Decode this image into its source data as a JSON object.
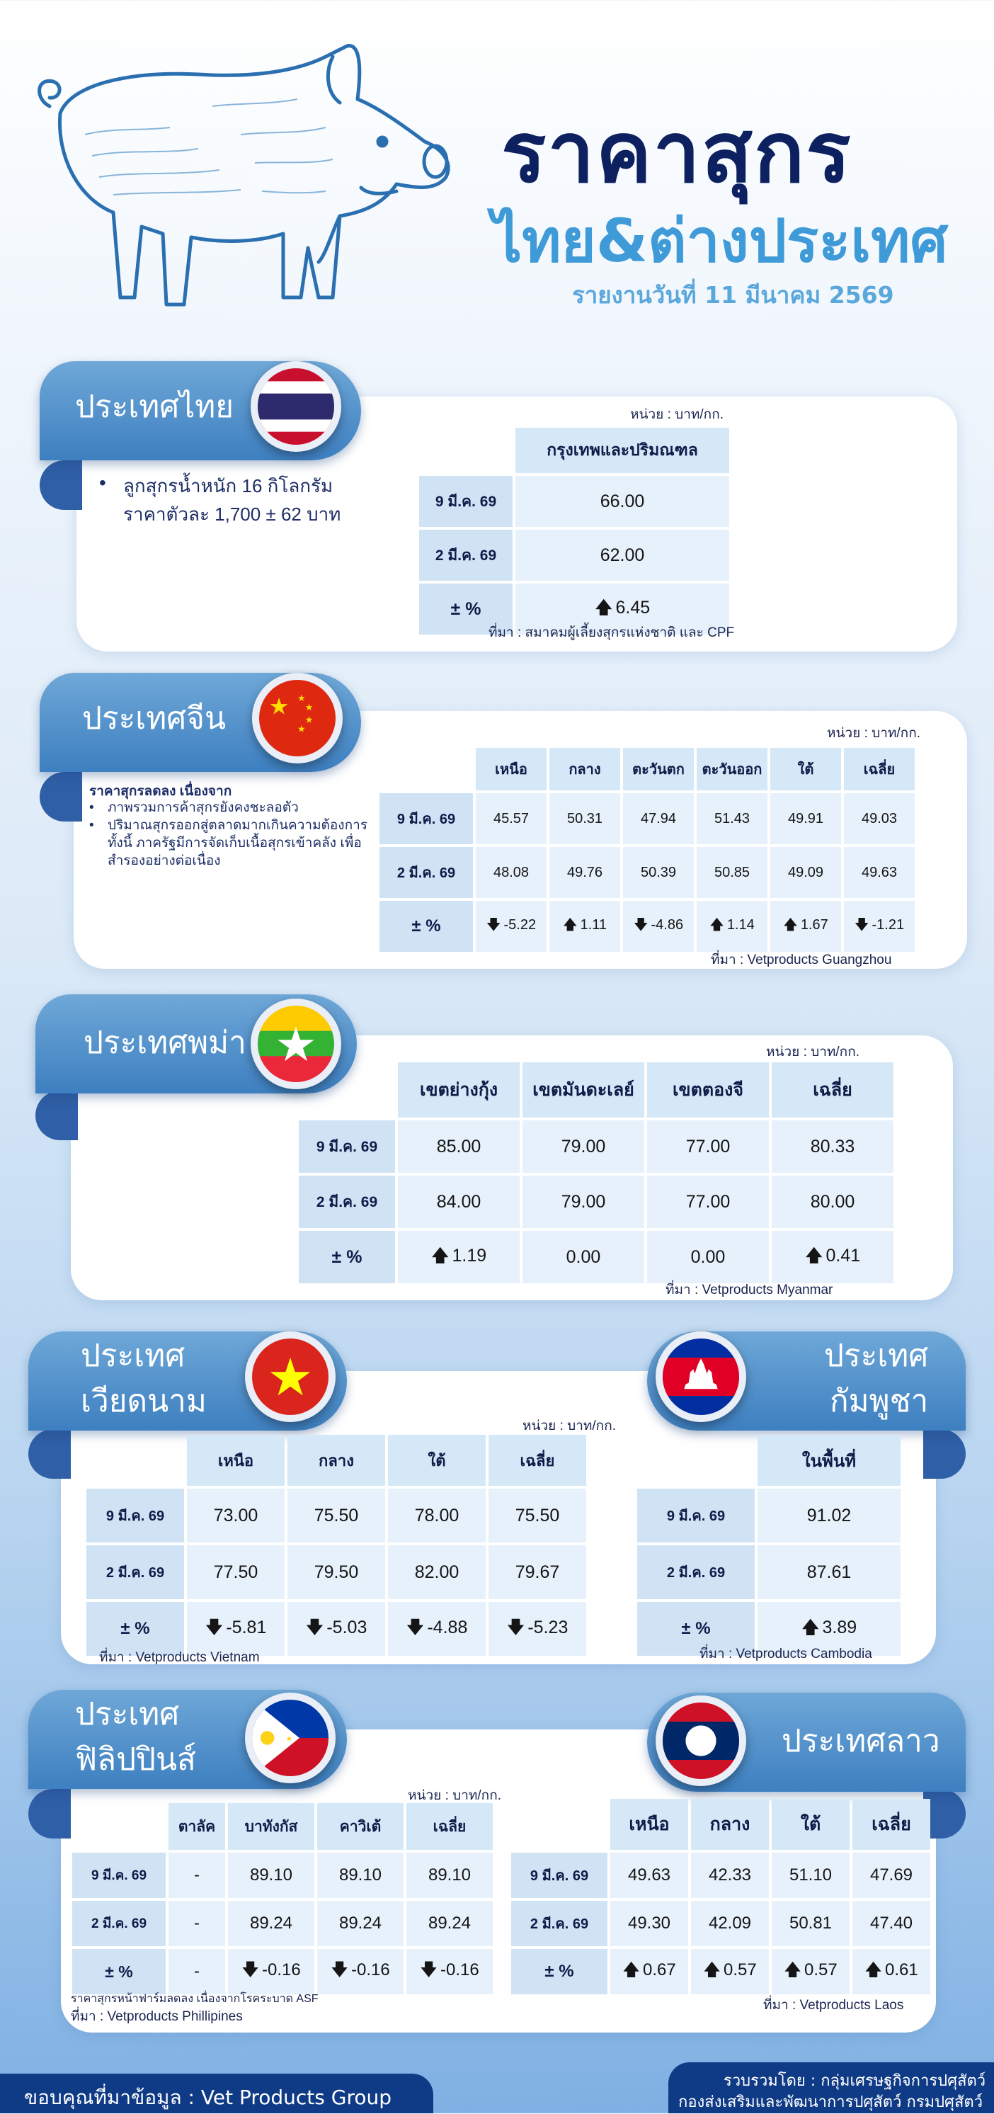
{
  "header": {
    "title": "ราคาสุกร",
    "subtitle": "ไทย&ต่างประเทศ",
    "report_date": "รายงานวันที่  11  มีนาคม 2569"
  },
  "thailand": {
    "name": "ประเทศไทย",
    "unit": "หน่วย : บาท/กก.",
    "bullet_line1": "ลูกสุกรน้ำหนัก 16 กิโลกรัม",
    "bullet_line2": "ราคาตัวละ 1,700  ±  62  บาท",
    "columns": [
      "กรุงเทพและปริมณฑล"
    ],
    "rows": [
      {
        "label": "9 มี.ค. 69",
        "values": [
          "66.00"
        ]
      },
      {
        "label": "2 มี.ค. 69",
        "values": [
          "62.00"
        ]
      }
    ],
    "change": {
      "label": "± %",
      "values": [
        {
          "dir": "up",
          "text": "6.45"
        }
      ]
    },
    "source": "ที่มา : สมาคมผู้เลี้ยงสุกรแห่งชาติ และ CPF"
  },
  "china": {
    "name": "ประเทศจีน",
    "unit": "หน่วย : บาท/กก.",
    "note_title": "ราคาสุกรลดลง เนื่องจาก",
    "note_items": [
      "ภาพรวมการค้าสุกรยังคงชะลอตัว",
      "ปริมาณสุกรออกสู่ตลาดมากเกินความต้องการ ทั้งนี้ ภาครัฐมีการจัดเก็บเนื้อสุกรเข้าคลัง เพื่อสำรองอย่างต่อเนื่อง"
    ],
    "columns": [
      "เหนือ",
      "กลาง",
      "ตะวันตก",
      "ตะวันออก",
      "ใต้",
      "เฉลี่ย"
    ],
    "rows": [
      {
        "label": "9 มี.ค. 69",
        "values": [
          "45.57",
          "50.31",
          "47.94",
          "51.43",
          "49.91",
          "49.03"
        ]
      },
      {
        "label": "2 มี.ค. 69",
        "values": [
          "48.08",
          "49.76",
          "50.39",
          "50.85",
          "49.09",
          "49.63"
        ]
      }
    ],
    "change": {
      "label": "± %",
      "values": [
        {
          "dir": "down",
          "text": "-5.22"
        },
        {
          "dir": "up",
          "text": "1.11"
        },
        {
          "dir": "down",
          "text": "-4.86"
        },
        {
          "dir": "up",
          "text": "1.14"
        },
        {
          "dir": "up",
          "text": "1.67"
        },
        {
          "dir": "down",
          "text": "-1.21"
        }
      ]
    },
    "source": "ที่มา : Vetproducts Guangzhou"
  },
  "myanmar": {
    "name": "ประเทศพม่า",
    "unit": "หน่วย : บาท/กก.",
    "columns": [
      "เขตย่างกุ้ง",
      "เขตมันดะเลย์",
      "เขตตองจี",
      "เฉลี่ย"
    ],
    "rows": [
      {
        "label": "9 มี.ค. 69",
        "values": [
          "85.00",
          "79.00",
          "77.00",
          "80.33"
        ]
      },
      {
        "label": "2 มี.ค. 69",
        "values": [
          "84.00",
          "79.00",
          "77.00",
          "80.00"
        ]
      }
    ],
    "change": {
      "label": "± %",
      "values": [
        {
          "dir": "up",
          "text": "1.19"
        },
        {
          "dir": "none",
          "text": "0.00"
        },
        {
          "dir": "none",
          "text": "0.00"
        },
        {
          "dir": "up",
          "text": "0.41"
        }
      ]
    },
    "source": "ที่มา : Vetproducts Myanmar"
  },
  "vietnam": {
    "name_line1": "ประเทศ",
    "name_line2": "เวียดนาม",
    "unit": "หน่วย : บาท/กก.",
    "columns": [
      "เหนือ",
      "กลาง",
      "ใต้",
      "เฉลี่ย"
    ],
    "rows": [
      {
        "label": "9 มี.ค. 69",
        "values": [
          "73.00",
          "75.50",
          "78.00",
          "75.50"
        ]
      },
      {
        "label": "2 มี.ค. 69",
        "values": [
          "77.50",
          "79.50",
          "82.00",
          "79.67"
        ]
      }
    ],
    "change": {
      "label": "± %",
      "values": [
        {
          "dir": "down",
          "text": "-5.81"
        },
        {
          "dir": "down",
          "text": "-5.03"
        },
        {
          "dir": "down",
          "text": "-4.88"
        },
        {
          "dir": "down",
          "text": "-5.23"
        }
      ]
    },
    "source": "ที่มา : Vetproducts Vietnam"
  },
  "cambodia": {
    "name_line1": "ประเทศ",
    "name_line2": "กัมพูชา",
    "columns": [
      "ในพื้นที่"
    ],
    "rows": [
      {
        "label": "9 มี.ค. 69",
        "values": [
          "91.02"
        ]
      },
      {
        "label": "2 มี.ค. 69",
        "values": [
          "87.61"
        ]
      }
    ],
    "change": {
      "label": "± %",
      "values": [
        {
          "dir": "up",
          "text": "3.89"
        }
      ]
    },
    "source": "ที่มา : Vetproducts Cambodia"
  },
  "philippines": {
    "name_line1": "ประเทศ",
    "name_line2": "ฟิลิปปินส์",
    "unit": "หน่วย : บาท/กก.",
    "columns": [
      "ตาลัค",
      "บาทังกัส",
      "คาวิเต้",
      "เฉลี่ย"
    ],
    "rows": [
      {
        "label": "9 มี.ค. 69",
        "values": [
          "-",
          "89.10",
          "89.10",
          "89.10"
        ]
      },
      {
        "label": "2 มี.ค. 69",
        "values": [
          "-",
          "89.24",
          "89.24",
          "89.24"
        ]
      }
    ],
    "change": {
      "label": "± %",
      "values": [
        {
          "dir": "none",
          "text": "-"
        },
        {
          "dir": "down",
          "text": "-0.16"
        },
        {
          "dir": "down",
          "text": "-0.16"
        },
        {
          "dir": "down",
          "text": "-0.16"
        }
      ]
    },
    "note": "ราคาสุกรหน้าฟาร์มลดลง เนื่องจากโรคระบาด ASF",
    "source": "ที่มา : Vetproducts Phillipines"
  },
  "laos": {
    "name": "ประเทศลาว",
    "columns": [
      "เหนือ",
      "กลาง",
      "ใต้",
      "เฉลี่ย"
    ],
    "rows": [
      {
        "label": "9 มี.ค. 69",
        "values": [
          "49.63",
          "42.33",
          "51.10",
          "47.69"
        ]
      },
      {
        "label": "2 มี.ค. 69",
        "values": [
          "49.30",
          "42.09",
          "50.81",
          "47.40"
        ]
      }
    ],
    "change": {
      "label": "± %",
      "values": [
        {
          "dir": "up",
          "text": "0.67"
        },
        {
          "dir": "up",
          "text": "0.57"
        },
        {
          "dir": "up",
          "text": "0.57"
        },
        {
          "dir": "up",
          "text": "0.61"
        }
      ]
    },
    "source": "ที่มา : Vetproducts Laos"
  },
  "footer": {
    "thanks": "ขอบคุณที่มาข้อมูล :  Vet Products Group",
    "credit_line1": "รวบรวมโดย : กลุ่มเศรษฐกิจการปศุสัตว์",
    "credit_line2": "กองส่งเสริมและพัฒนาการปศุสัตว์ กรมปศุสัตว์"
  },
  "colors": {
    "up": "#1a9a45",
    "down": "#e0262a",
    "banner": "#3d7fc0",
    "title": "#0d2060"
  },
  "icons": {
    "up": "arrow-up-icon",
    "down": "arrow-down-icon"
  }
}
